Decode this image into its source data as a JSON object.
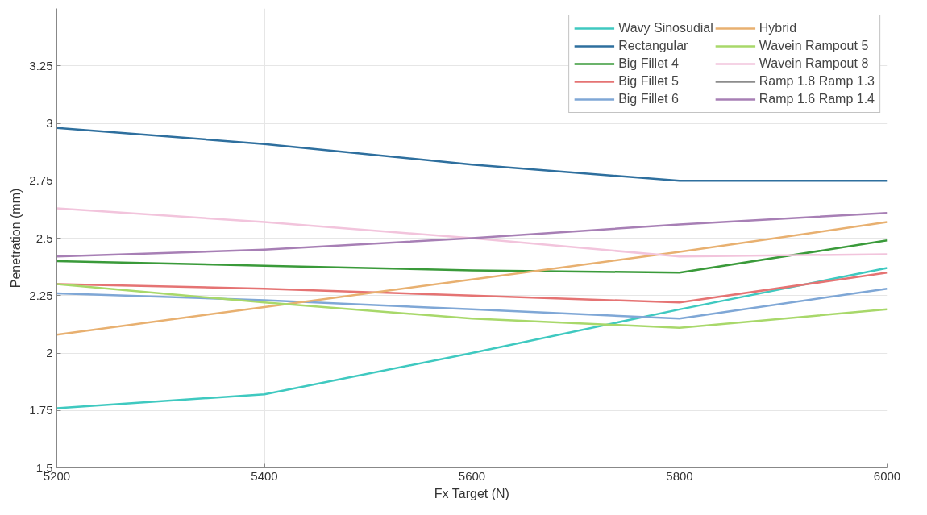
{
  "chart_data": {
    "type": "line",
    "xlabel": "Fx Target (N)",
    "ylabel": "Penetration (mm)",
    "x": [
      5200,
      5400,
      5600,
      5800,
      6000
    ],
    "xlim": [
      5200,
      6000
    ],
    "xticks": [
      5200,
      5400,
      5600,
      5800,
      6000
    ],
    "ylim": [
      1.5,
      3.5
    ],
    "yticks": [
      1.5,
      1.75,
      2,
      2.25,
      2.5,
      2.75,
      3,
      3.25
    ],
    "grid": true,
    "legend": "top right",
    "line_style": "solid",
    "series": [
      {
        "name": "Wavy Sinosudial",
        "color": "#3fc9c0",
        "values": [
          1.76,
          1.82,
          2.0,
          2.19,
          2.37
        ]
      },
      {
        "name": "Rectangular",
        "color": "#2e6f9e",
        "values": [
          2.98,
          2.91,
          2.82,
          2.75,
          2.75
        ]
      },
      {
        "name": "Big Fillet 4",
        "color": "#3a9a3a",
        "values": [
          2.4,
          2.38,
          2.36,
          2.35,
          2.49
        ]
      },
      {
        "name": "Big Fillet 5",
        "color": "#e57373",
        "values": [
          2.3,
          2.28,
          2.25,
          2.22,
          2.35
        ]
      },
      {
        "name": "Big Fillet 6",
        "color": "#7fa7d6",
        "values": [
          2.26,
          2.23,
          2.19,
          2.15,
          2.28
        ]
      },
      {
        "name": "Hybrid",
        "color": "#e8b070",
        "values": [
          2.08,
          2.2,
          2.32,
          2.44,
          2.57
        ]
      },
      {
        "name": "Wavein Rampout 5",
        "color": "#a8d86a",
        "values": [
          2.3,
          2.22,
          2.15,
          2.11,
          2.19
        ]
      },
      {
        "name": "Wavein Rampout 8",
        "color": "#f2c4dc",
        "values": [
          2.63,
          2.57,
          2.5,
          2.42,
          2.43
        ]
      },
      {
        "name": "Ramp 1.8 Ramp 1.3",
        "color": "#8c8c8c",
        "values": [
          null,
          null,
          null,
          null,
          null
        ]
      },
      {
        "name": "Ramp 1.6 Ramp 1.4",
        "color": "#a77fb5",
        "values": [
          2.42,
          2.45,
          2.5,
          2.56,
          2.61
        ]
      }
    ]
  }
}
